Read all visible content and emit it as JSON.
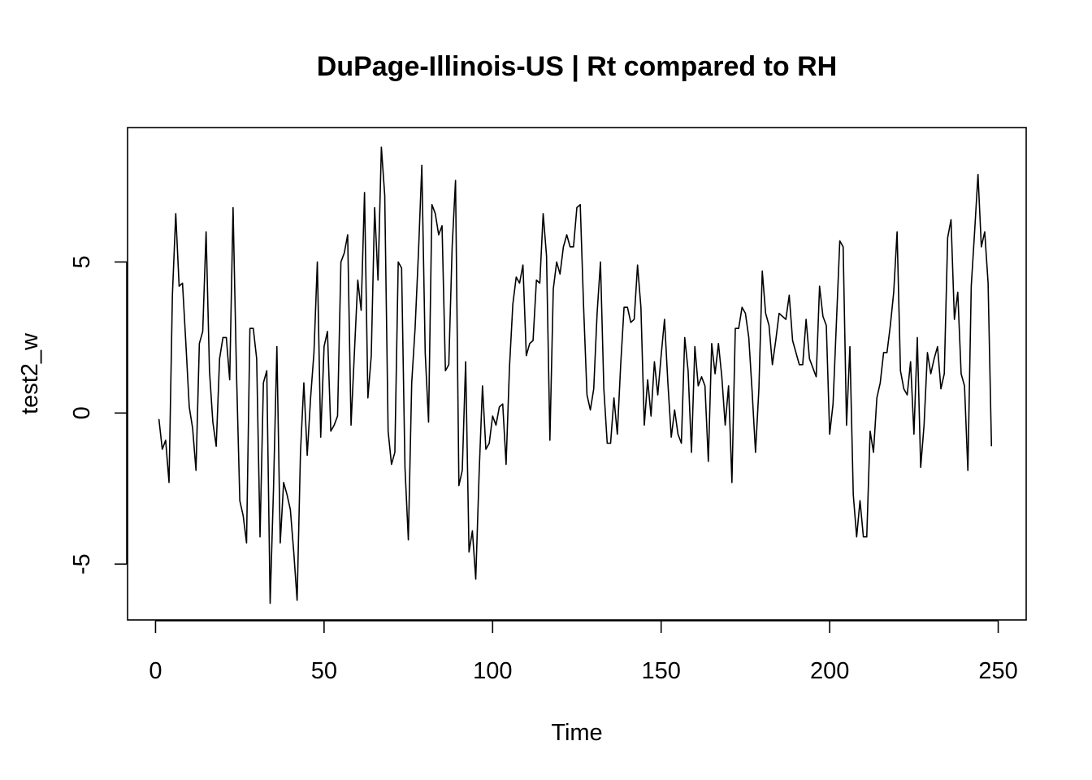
{
  "chart_data": {
    "type": "line",
    "title": "DuPage-Illinois-US | Rt compared to RH",
    "xlabel": "Time",
    "ylabel": "test2_w",
    "xlim": [
      -8.3,
      258.3
    ],
    "ylim": [
      -6.85,
      9.45
    ],
    "xticks": [
      0,
      50,
      100,
      150,
      200,
      250
    ],
    "yticks": [
      -5,
      0,
      5
    ],
    "grid": false,
    "legend": "none",
    "line_color": "#000000",
    "series": [
      {
        "x_start": 1,
        "x_step": 1,
        "values": [
          -0.2,
          -1.2,
          -0.9,
          -2.3,
          3.9,
          6.6,
          4.2,
          4.3,
          2.3,
          0.2,
          -0.5,
          -1.9,
          2.3,
          2.7,
          6.0,
          1.4,
          -0.3,
          -1.1,
          1.8,
          2.5,
          2.5,
          1.1,
          6.8,
          1.4,
          -2.9,
          -3.4,
          -4.3,
          2.8,
          2.8,
          1.8,
          -4.1,
          1.0,
          1.4,
          -6.3,
          -2.5,
          2.2,
          -4.3,
          -2.3,
          -2.7,
          -3.2,
          -4.6,
          -6.2,
          -1.3,
          1.0,
          -1.4,
          0.5,
          2.0,
          5.0,
          -0.8,
          2.2,
          2.7,
          -0.6,
          -0.4,
          -0.1,
          5.0,
          5.3,
          5.9,
          -0.4,
          2.0,
          4.4,
          3.4,
          7.3,
          0.5,
          1.9,
          6.8,
          4.4,
          8.8,
          7.2,
          -0.6,
          -1.7,
          -1.3,
          5.0,
          4.8,
          -1.8,
          -4.2,
          1.0,
          2.8,
          5.3,
          8.2,
          2.0,
          -0.3,
          6.9,
          6.6,
          5.9,
          6.2,
          1.4,
          1.6,
          5.5,
          7.7,
          -2.4,
          -1.9,
          1.7,
          -4.6,
          -3.9,
          -5.5,
          -2.0,
          0.9,
          -1.2,
          -1.0,
          -0.1,
          -0.4,
          0.2,
          0.3,
          -1.7,
          1.5,
          3.6,
          4.5,
          4.3,
          4.9,
          1.9,
          2.3,
          2.4,
          4.4,
          4.3,
          6.6,
          5.2,
          -0.9,
          4.1,
          5.0,
          4.6,
          5.5,
          5.9,
          5.5,
          5.5,
          6.8,
          6.9,
          3.5,
          0.6,
          0.1,
          0.8,
          3.3,
          5.0,
          0.8,
          -1.0,
          -1.0,
          0.5,
          -0.7,
          1.6,
          3.5,
          3.5,
          3.0,
          3.1,
          4.9,
          3.5,
          -0.4,
          1.1,
          -0.1,
          1.7,
          0.6,
          1.9,
          3.1,
          1.0,
          -0.8,
          0.1,
          -0.7,
          -1.0,
          2.5,
          1.4,
          -1.3,
          2.2,
          0.9,
          1.2,
          0.9,
          -1.6,
          2.3,
          1.3,
          2.3,
          1.2,
          -0.4,
          0.9,
          -2.3,
          2.8,
          2.8,
          3.5,
          3.3,
          2.5,
          0.7,
          -1.3,
          0.8,
          4.7,
          3.3,
          2.9,
          1.6,
          2.4,
          3.3,
          3.2,
          3.1,
          3.9,
          2.4,
          2.0,
          1.6,
          1.6,
          3.1,
          1.8,
          1.5,
          1.2,
          4.2,
          3.2,
          2.9,
          -0.7,
          0.3,
          3.0,
          5.7,
          5.5,
          -0.4,
          2.2,
          -2.7,
          -4.1,
          -2.9,
          -4.1,
          -4.1,
          -0.6,
          -1.3,
          0.5,
          1.0,
          2.0,
          2.0,
          2.9,
          4.0,
          6.0,
          1.4,
          0.8,
          0.6,
          1.7,
          -0.7,
          2.5,
          -1.8,
          -0.4,
          2.0,
          1.3,
          1.8,
          2.2,
          0.8,
          1.3,
          5.8,
          6.4,
          3.1,
          4.0,
          1.3,
          0.9,
          -1.9,
          4.2,
          6.0,
          7.9,
          5.5,
          6.0,
          4.3,
          -1.1
        ]
      }
    ]
  }
}
